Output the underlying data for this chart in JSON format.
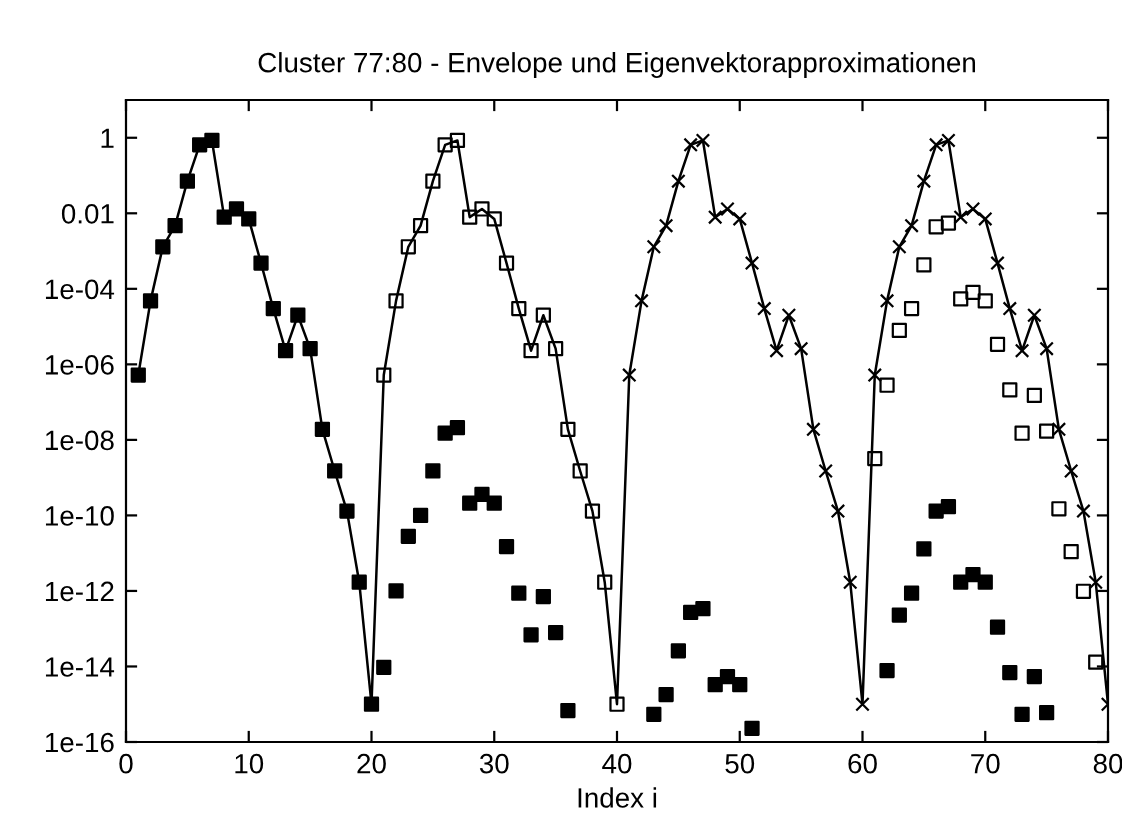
{
  "chart_data": {
    "type": "scatter",
    "title": "Cluster 77:80 - Envelope und Eigenvektorapproximationen",
    "xlabel": "Index i",
    "xlim": [
      0,
      80
    ],
    "xticks": [
      0,
      10,
      20,
      30,
      40,
      50,
      60,
      70,
      80
    ],
    "ylim": [
      1e-16,
      10
    ],
    "yticks": [
      {
        "value": 1e-16,
        "label": "1e-16"
      },
      {
        "value": 1e-14,
        "label": "1e-14"
      },
      {
        "value": 1e-12,
        "label": "1e-12"
      },
      {
        "value": 1e-10,
        "label": "1e-10"
      },
      {
        "value": 1e-08,
        "label": "1e-08"
      },
      {
        "value": 1e-06,
        "label": "1e-06"
      },
      {
        "value": 0.0001,
        "label": "1e-04"
      },
      0.01,
      1
    ],
    "log": "y",
    "grid": false,
    "legend": false,
    "series": [
      {
        "type": "line",
        "color": "#000000",
        "marker": "none",
        "line_style": "solid",
        "x": [
          1,
          2,
          3,
          4,
          5,
          6,
          7,
          8,
          9,
          10,
          11,
          12,
          13,
          14,
          15,
          16,
          17,
          18,
          19,
          20,
          21,
          22,
          23,
          24,
          25,
          26,
          27,
          28,
          29,
          30,
          31,
          32,
          33,
          34,
          35,
          36,
          37,
          38,
          39,
          40,
          41,
          42,
          43,
          44,
          45,
          46,
          47,
          48,
          49,
          50,
          51,
          52,
          53,
          54,
          55,
          56,
          57,
          58,
          59,
          60,
          61,
          62,
          63,
          64,
          65,
          66,
          67,
          68,
          69,
          70,
          71,
          72,
          73,
          74,
          75,
          76,
          77,
          78,
          79,
          80
        ],
        "values": [
          5.2e-07,
          4.8e-05,
          0.0013,
          0.0047,
          0.071,
          0.65,
          0.85,
          0.0079,
          0.013,
          0.0071,
          0.00048,
          3e-05,
          2.3e-06,
          2e-05,
          2.6e-06,
          1.9e-08,
          1.5e-09,
          1.3e-10,
          1.7e-12,
          1e-15,
          5.2e-07,
          4.8e-05,
          0.0013,
          0.0047,
          0.071,
          0.65,
          0.85,
          0.0079,
          0.013,
          0.0071,
          0.00048,
          3e-05,
          2.3e-06,
          2e-05,
          2.6e-06,
          1.9e-08,
          1.5e-09,
          1.3e-10,
          1.7e-12,
          1e-15,
          5.2e-07,
          4.8e-05,
          0.0013,
          0.0047,
          0.071,
          0.65,
          0.85,
          0.0079,
          0.013,
          0.0071,
          0.00048,
          3e-05,
          2.3e-06,
          2e-05,
          2.6e-06,
          1.9e-08,
          1.5e-09,
          1.3e-10,
          1.7e-12,
          1e-15,
          5.2e-07,
          4.8e-05,
          0.0013,
          0.0047,
          0.071,
          0.65,
          0.85,
          0.0079,
          0.013,
          0.0071,
          0.00048,
          3e-05,
          2.3e-06,
          2e-05,
          2.6e-06,
          1.9e-08,
          1.5e-09,
          1.3e-10,
          1.7e-12,
          1e-15
        ]
      },
      {
        "color": "#000000",
        "marker": "square",
        "x": [
          1,
          2,
          3,
          4,
          5,
          6,
          7,
          8,
          9,
          10,
          11,
          12,
          13,
          14,
          15,
          16,
          17,
          18,
          19,
          20,
          21,
          22,
          23,
          24,
          25,
          26,
          27,
          28,
          29,
          30,
          31,
          32,
          33,
          34,
          35,
          36,
          43,
          44,
          45,
          46,
          47,
          48,
          49,
          50,
          51,
          62,
          63,
          64,
          65,
          66,
          67,
          68,
          69,
          70,
          71,
          72,
          73,
          74,
          75
        ],
        "values": [
          5.2e-07,
          4.8e-05,
          0.0013,
          0.0047,
          0.071,
          0.65,
          0.85,
          0.0079,
          0.013,
          0.0071,
          0.00048,
          3e-05,
          2.3e-06,
          2e-05,
          2.6e-06,
          1.9e-08,
          1.5e-09,
          1.3e-10,
          1.7e-12,
          1e-15,
          9.5e-15,
          1e-12,
          2.8e-11,
          1e-10,
          1.5e-09,
          1.5e-08,
          2.1e-08,
          2.1e-10,
          3.6e-10,
          2.1e-10,
          1.5e-11,
          8.7e-13,
          6.9e-14,
          7.1e-13,
          7.9e-14,
          6.8e-16,
          5.4e-16,
          1.8e-15,
          2.6e-14,
          2.7e-13,
          3.4e-13,
          3.3e-15,
          5.4e-15,
          3.3e-15,
          2.3e-16,
          7.8e-15,
          2.3e-13,
          8.7e-13,
          1.3e-11,
          1.3e-10,
          1.7e-10,
          1.7e-12,
          2.7e-12,
          1.7e-12,
          1.1e-13,
          6.9e-15,
          5.4e-16,
          5.4e-15,
          6e-16
        ]
      },
      {
        "color": "#000000",
        "marker": "square-open",
        "x": [
          21,
          22,
          23,
          24,
          25,
          26,
          27,
          28,
          29,
          30,
          31,
          32,
          33,
          34,
          35,
          36,
          37,
          38,
          39,
          40,
          61,
          62,
          63,
          64,
          65,
          66,
          67,
          68,
          69,
          70,
          71,
          72,
          73,
          74,
          75,
          76,
          77,
          78,
          79
        ],
        "values": [
          5.2e-07,
          4.8e-05,
          0.0013,
          0.0047,
          0.071,
          0.65,
          0.85,
          0.0079,
          0.013,
          0.0071,
          0.00048,
          3e-05,
          2.3e-06,
          2e-05,
          2.6e-06,
          1.9e-08,
          1.5e-09,
          1.3e-10,
          1.7e-12,
          1e-15,
          3.2e-09,
          2.8e-07,
          7.9e-06,
          3e-05,
          0.00043,
          0.0044,
          0.0055,
          5.4e-05,
          8.1e-05,
          4.8e-05,
          3.4e-06,
          2.1e-07,
          1.5e-08,
          1.5e-07,
          1.7e-08,
          1.5e-10,
          1.1e-11,
          9.8e-13,
          1.3e-14
        ]
      },
      {
        "color": "#000000",
        "marker": "cross",
        "x": [
          41,
          42,
          43,
          44,
          45,
          46,
          47,
          48,
          49,
          50,
          51,
          52,
          53,
          54,
          55,
          56,
          57,
          58,
          59,
          60,
          61,
          62,
          63,
          64,
          65,
          66,
          67,
          68,
          69,
          70,
          71,
          72,
          73,
          74,
          75,
          76,
          77,
          78,
          79,
          80
        ],
        "values": [
          5.2e-07,
          4.8e-05,
          0.0013,
          0.0047,
          0.071,
          0.65,
          0.85,
          0.0079,
          0.013,
          0.0071,
          0.00048,
          3e-05,
          2.3e-06,
          2e-05,
          2.6e-06,
          1.9e-08,
          1.5e-09,
          1.3e-10,
          1.7e-12,
          1e-15,
          5.2e-07,
          4.8e-05,
          0.0013,
          0.0047,
          0.071,
          0.65,
          0.85,
          0.0079,
          0.013,
          0.0071,
          0.00048,
          3e-05,
          2.3e-06,
          2e-05,
          2.6e-06,
          1.9e-08,
          1.5e-09,
          1.3e-10,
          1.7e-12,
          1e-15
        ]
      }
    ]
  }
}
